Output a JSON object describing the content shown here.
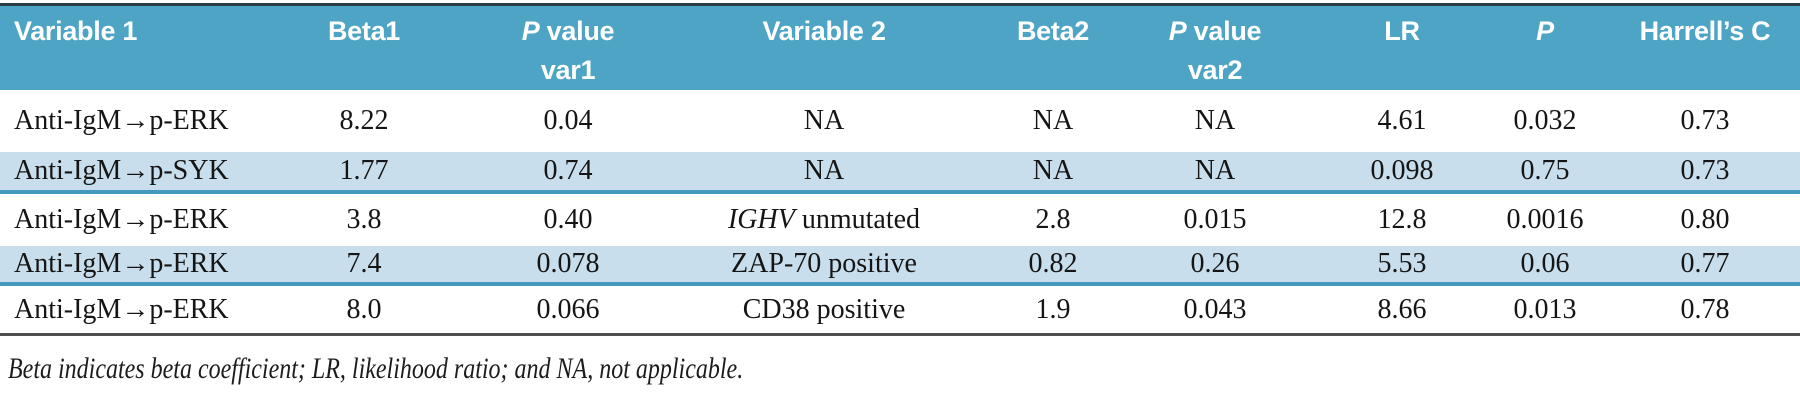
{
  "colors": {
    "header_background": "#4da4c4",
    "header_text": "#ffffff",
    "shaded_row_background": "#c8deec",
    "row_separator": "#4499be",
    "bottom_rule": "#4e4e4e",
    "top_border": "#2c3a43"
  },
  "table": {
    "columns": [
      {
        "line1": [
          {
            "t": "Variable 1"
          }
        ],
        "line2": "",
        "align": "left"
      },
      {
        "line1": [
          {
            "t": "Beta1"
          }
        ],
        "line2": ""
      },
      {
        "line1": [
          {
            "t": "P",
            "i": true
          },
          {
            "t": " value"
          }
        ],
        "line2": "var1"
      },
      {
        "line1": [
          {
            "t": "Variable 2"
          }
        ],
        "line2": ""
      },
      {
        "line1": [
          {
            "t": "Beta2"
          }
        ],
        "line2": ""
      },
      {
        "line1": [
          {
            "t": "P",
            "i": true
          },
          {
            "t": " value"
          }
        ],
        "line2": "var2"
      },
      {
        "line1": [
          {
            "t": "LR"
          }
        ],
        "line2": ""
      },
      {
        "line1": [
          {
            "t": "P",
            "i": true
          }
        ],
        "line2": ""
      },
      {
        "line1": [
          {
            "t": "Harrell’s C"
          }
        ],
        "line2": ""
      }
    ],
    "rows": [
      [
        [
          {
            "t": "Anti-IgM→p-ERK"
          }
        ],
        [
          {
            "t": "8.22"
          }
        ],
        [
          {
            "t": "0.04"
          }
        ],
        [
          {
            "t": "NA"
          }
        ],
        [
          {
            "t": "NA"
          }
        ],
        [
          {
            "t": "NA"
          }
        ],
        [
          {
            "t": "4.61"
          }
        ],
        [
          {
            "t": "0.032"
          }
        ],
        [
          {
            "t": "0.73"
          }
        ]
      ],
      [
        [
          {
            "t": "Anti-IgM→p-SYK"
          }
        ],
        [
          {
            "t": "1.77"
          }
        ],
        [
          {
            "t": "0.74"
          }
        ],
        [
          {
            "t": "NA"
          }
        ],
        [
          {
            "t": "NA"
          }
        ],
        [
          {
            "t": "NA"
          }
        ],
        [
          {
            "t": "0.098"
          }
        ],
        [
          {
            "t": "0.75"
          }
        ],
        [
          {
            "t": "0.73"
          }
        ]
      ],
      [
        [
          {
            "t": "Anti-IgM→p-ERK"
          }
        ],
        [
          {
            "t": "3.8"
          }
        ],
        [
          {
            "t": "0.40"
          }
        ],
        [
          {
            "t": "IGHV",
            "i": true
          },
          {
            "t": " unmutated"
          }
        ],
        [
          {
            "t": "2.8"
          }
        ],
        [
          {
            "t": "0.015"
          }
        ],
        [
          {
            "t": "12.8"
          }
        ],
        [
          {
            "t": "0.0016"
          }
        ],
        [
          {
            "t": "0.80"
          }
        ]
      ],
      [
        [
          {
            "t": "Anti-IgM→p-ERK"
          }
        ],
        [
          {
            "t": "7.4"
          }
        ],
        [
          {
            "t": "0.078"
          }
        ],
        [
          {
            "t": "ZAP-70 positive"
          }
        ],
        [
          {
            "t": "0.82"
          }
        ],
        [
          {
            "t": "0.26"
          }
        ],
        [
          {
            "t": "5.53"
          }
        ],
        [
          {
            "t": "0.06"
          }
        ],
        [
          {
            "t": "0.77"
          }
        ]
      ],
      [
        [
          {
            "t": "Anti-IgM→p-ERK"
          }
        ],
        [
          {
            "t": "8.0"
          }
        ],
        [
          {
            "t": "0.066"
          }
        ],
        [
          {
            "t": "CD38 positive"
          }
        ],
        [
          {
            "t": "1.9"
          }
        ],
        [
          {
            "t": "0.043"
          }
        ],
        [
          {
            "t": "8.66"
          }
        ],
        [
          {
            "t": "0.013"
          }
        ],
        [
          {
            "t": "0.78"
          }
        ]
      ]
    ],
    "footnote": "Beta indicates beta coefficient; LR, likelihood ratio; and NA, not applicable."
  }
}
